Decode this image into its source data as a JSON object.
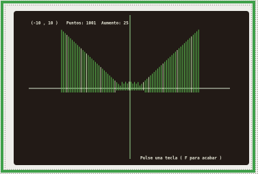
{
  "screen": {
    "range_label": "(-10 , 10 )",
    "points_label": "Puntos: 1001",
    "zoom_label": "Aumento: 25",
    "prompt": "Pulse una tecla ( F para acabar )"
  }
}
